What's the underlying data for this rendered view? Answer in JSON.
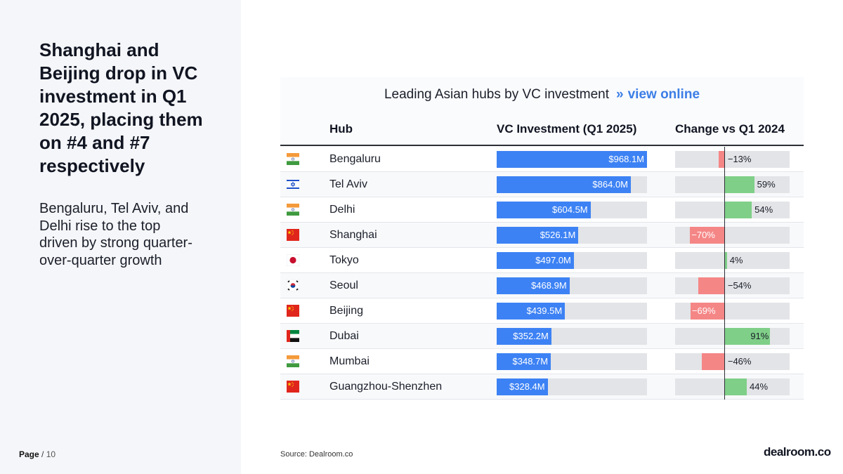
{
  "headline": "Shanghai and Beijing drop in VC investment in Q1 2025, placing them on #4 and #7 respectively",
  "subtext": "Bengaluru, Tel Aviv, and Delhi rise to the top driven by strong quarter-over-quarter growth",
  "page": {
    "label": "Page",
    "separator": "/",
    "total": "10"
  },
  "source": "Source:  Dealroom.co",
  "logo": "dealroom.co",
  "chart_data": {
    "type": "table",
    "title": "Leading Asian hubs by VC investment",
    "link_chevron": "»",
    "link_text": "view online",
    "columns": [
      "Hub",
      "VC Investment (Q1 2025)",
      "Change vs Q1 2024"
    ],
    "colors": {
      "investment_bar": "#3d82f4",
      "positive": "#7fcf88",
      "negative": "#f58686"
    },
    "investment_scale_max": 968.1,
    "change_scale": [
      -100,
      130
    ],
    "rows": [
      {
        "hub": "Bengaluru",
        "flag": "india-flag-icon",
        "investment": 968.1,
        "investment_label": "$968.1M",
        "change": -13,
        "change_label": "−13%"
      },
      {
        "hub": "Tel Aviv",
        "flag": "israel-flag-icon",
        "investment": 864.0,
        "investment_label": "$864.0M",
        "change": 59,
        "change_label": "59%"
      },
      {
        "hub": "Delhi",
        "flag": "india-flag-icon",
        "investment": 604.5,
        "investment_label": "$604.5M",
        "change": 54,
        "change_label": "54%"
      },
      {
        "hub": "Shanghai",
        "flag": "china-flag-icon",
        "investment": 526.1,
        "investment_label": "$526.1M",
        "change": -70,
        "change_label": "−70%"
      },
      {
        "hub": "Tokyo",
        "flag": "japan-flag-icon",
        "investment": 497.0,
        "investment_label": "$497.0M",
        "change": 4,
        "change_label": "4%"
      },
      {
        "hub": "Seoul",
        "flag": "south-korea-flag-icon",
        "investment": 468.9,
        "investment_label": "$468.9M",
        "change": -54,
        "change_label": "−54%"
      },
      {
        "hub": "Beijing",
        "flag": "china-flag-icon",
        "investment": 439.5,
        "investment_label": "$439.5M",
        "change": -69,
        "change_label": "−69%"
      },
      {
        "hub": "Dubai",
        "flag": "uae-flag-icon",
        "investment": 352.2,
        "investment_label": "$352.2M",
        "change": 91,
        "change_label": "91%"
      },
      {
        "hub": "Mumbai",
        "flag": "india-flag-icon",
        "investment": 348.7,
        "investment_label": "$348.7M",
        "change": -46,
        "change_label": "−46%"
      },
      {
        "hub": "Guangzhou-Shenzhen",
        "flag": "china-flag-icon",
        "investment": 328.4,
        "investment_label": "$328.4M",
        "change": 44,
        "change_label": "44%"
      }
    ]
  }
}
